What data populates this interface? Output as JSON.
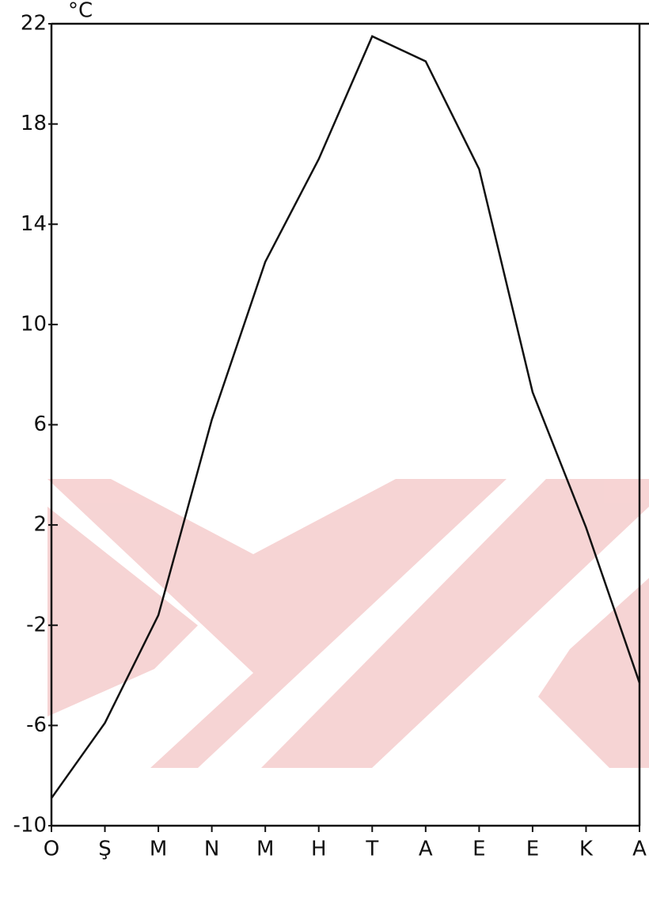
{
  "chart_data": {
    "type": "line",
    "y_label": "°C",
    "categories": [
      "O",
      "Ş",
      "M",
      "N",
      "M",
      "H",
      "T",
      "A",
      "E",
      "E",
      "K",
      "A"
    ],
    "values": [
      -8.9,
      -5.9,
      -1.6,
      6.2,
      12.5,
      16.6,
      21.5,
      20.5,
      16.2,
      7.3,
      1.9,
      -4.3
    ],
    "color": "#111111",
    "ylim": [
      -10,
      22
    ],
    "yticks": [
      -10,
      -6,
      -2,
      2,
      6,
      10,
      14,
      18,
      22
    ],
    "grid": false
  }
}
